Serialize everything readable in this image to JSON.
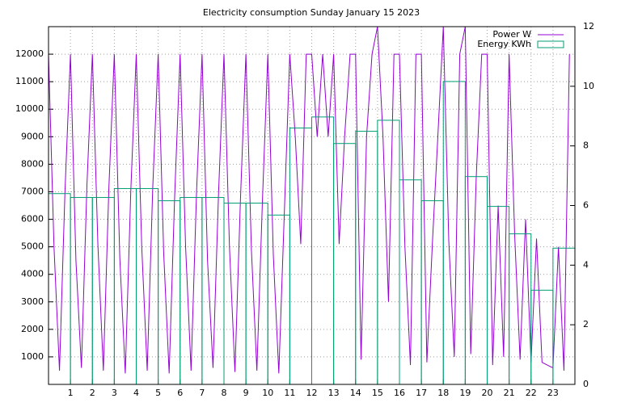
{
  "chart_data": {
    "type": "combo",
    "title": "Electricity consumption Sunday January 15 2023",
    "xlim": [
      0,
      24
    ],
    "xticks": [
      1,
      2,
      3,
      4,
      5,
      6,
      7,
      8,
      9,
      10,
      11,
      12,
      13,
      14,
      15,
      16,
      17,
      18,
      19,
      20,
      21,
      22,
      23
    ],
    "ylim": [
      0,
      13000
    ],
    "yticks": [
      1000,
      2000,
      3000,
      4000,
      5000,
      6000,
      7000,
      8000,
      9000,
      10000,
      11000,
      12000
    ],
    "y2lim": [
      0,
      12
    ],
    "y2ticks": [
      0,
      2,
      4,
      6,
      8,
      10,
      12
    ],
    "grid": true,
    "legend": "top-right",
    "series": [
      {
        "name": "Power W",
        "color": "#9400d3",
        "type": "line",
        "x": [
          0,
          0.25,
          0.5,
          0.75,
          1,
          1.25,
          1.5,
          1.75,
          2,
          2.25,
          2.5,
          2.75,
          3,
          3.25,
          3.5,
          3.75,
          4,
          4.25,
          4.5,
          4.75,
          5,
          5.25,
          5.5,
          5.75,
          6,
          6.25,
          6.5,
          6.75,
          7,
          7.25,
          7.5,
          7.75,
          8,
          8.25,
          8.5,
          8.75,
          9,
          9.25,
          9.5,
          9.75,
          10,
          10.25,
          10.5,
          10.75,
          11,
          11.25,
          11.5,
          11.75,
          12,
          12.25,
          12.5,
          12.75,
          13,
          13.25,
          13.5,
          13.75,
          14,
          14.25,
          14.5,
          14.75,
          15,
          15.25,
          15.5,
          15.75,
          16,
          16.25,
          16.5,
          16.75,
          17,
          17.25,
          17.5,
          17.75,
          18,
          18.25,
          18.5,
          18.75,
          19,
          19.25,
          19.5,
          19.75,
          20,
          20.25,
          20.5,
          20.75,
          21,
          21.25,
          21.5,
          21.75,
          22,
          22.25,
          22.5,
          22.75,
          23,
          23.25,
          23.5,
          23.75
        ],
        "values": [
          12000,
          5000,
          500,
          7000,
          12000,
          4500,
          600,
          7200,
          12000,
          5100,
          500,
          7100,
          12000,
          4600,
          400,
          7000,
          12000,
          5000,
          500,
          7100,
          12000,
          4800,
          400,
          6800,
          12000,
          5000,
          500,
          7000,
          12000,
          4500,
          600,
          6900,
          12000,
          5000,
          450,
          6700,
          12000,
          4900,
          500,
          6600,
          12000,
          4700,
          400,
          6200,
          12000,
          9000,
          5100,
          12000,
          12000,
          9000,
          12000,
          9000,
          12000,
          5100,
          9000,
          12000,
          12000,
          900,
          9000,
          12000,
          13000,
          9000,
          3000,
          12000,
          12000,
          5000,
          700,
          12000,
          12000,
          800,
          5100,
          9000,
          13000,
          5200,
          1000,
          12000,
          13000,
          1100,
          7500,
          12000,
          12000,
          700,
          6500,
          1000,
          12000,
          5500,
          900,
          6000,
          800,
          5300,
          800,
          700,
          600,
          5000,
          500,
          12000
        ]
      },
      {
        "name": "Energy KWh",
        "color": "#009e73",
        "type": "bar",
        "axis": "y2",
        "x": [
          0,
          1,
          2,
          3,
          4,
          5,
          6,
          7,
          8,
          9,
          10,
          11,
          12,
          13,
          14,
          15,
          16,
          17,
          18,
          19,
          20,
          21,
          22,
          23
        ],
        "values": [
          6.4,
          6.27,
          6.27,
          6.57,
          6.57,
          6.16,
          6.27,
          6.27,
          6.08,
          6.08,
          5.68,
          8.6,
          8.97,
          8.08,
          8.49,
          8.86,
          6.86,
          6.16,
          10.16,
          6.97,
          5.97,
          5.05,
          3.16,
          4.57
        ]
      }
    ]
  }
}
